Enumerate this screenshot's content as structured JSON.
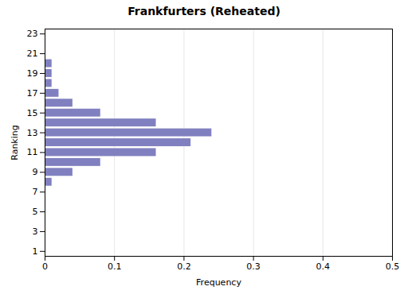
{
  "chart_data": {
    "type": "bar",
    "orientation": "horizontal",
    "title": "Frankfurters (Reheated)",
    "xlabel": "Frequency",
    "ylabel": "Ranking",
    "categories": [
      1,
      2,
      3,
      4,
      5,
      6,
      7,
      8,
      9,
      10,
      11,
      12,
      13,
      14,
      15,
      16,
      17,
      18,
      19,
      20,
      21,
      22,
      23
    ],
    "values": [
      0,
      0,
      0,
      0,
      0,
      0,
      0,
      0.01,
      0.04,
      0.08,
      0.16,
      0.21,
      0.24,
      0.16,
      0.08,
      0.04,
      0.02,
      0.01,
      0.01,
      0.01,
      0,
      0,
      0
    ],
    "color": "#8080c0",
    "xlim": [
      0,
      0.5
    ],
    "xticks": [
      0,
      0.1,
      0.2,
      0.3,
      0.4,
      0.5
    ],
    "ylim": [
      0.5,
      23.5
    ],
    "yticks": [
      1,
      3,
      5,
      7,
      9,
      11,
      13,
      15,
      17,
      19,
      21,
      23
    ],
    "grid": true
  }
}
